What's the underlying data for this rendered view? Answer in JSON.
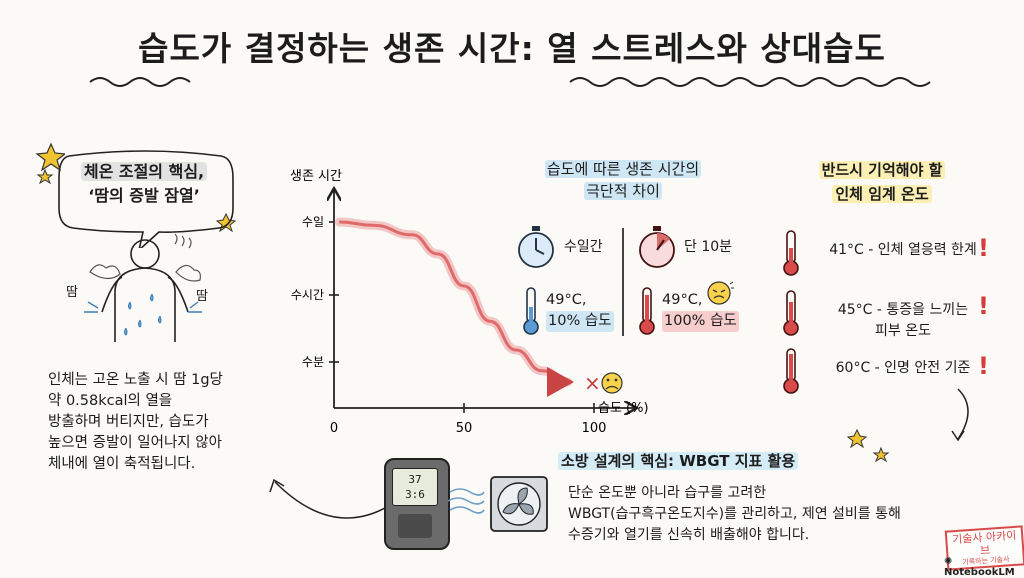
{
  "title": "습도가 결정하는 생존 시간: 열 스트레스와 상대습도",
  "left": {
    "heading_line1": "체온 조절의 핵심,",
    "heading_line2": "‘땀의 증발 잠열’",
    "sweat_label_left": "땀",
    "sweat_label_right": "땀",
    "body_text": [
      "인체는 고온 노출 시 땀 1g당",
      "약 0.58kcal의 열을",
      "방출하며 버티지만, 습도가",
      "높으면 증발이 일어나지 않아",
      "체내에 열이 축적됩니다."
    ]
  },
  "chart_data": {
    "type": "line",
    "ylabel": "생존 시간",
    "xlabel": "습도 (%)",
    "x_ticks": [
      "0",
      "50",
      "100"
    ],
    "y_ticks": [
      "수일",
      "수시간",
      "수분"
    ],
    "series": [
      {
        "x": [
          2,
          15,
          30,
          40,
          50,
          60,
          70,
          80,
          90
        ],
        "y_level": [
          1.0,
          0.98,
          0.92,
          0.8,
          0.6,
          0.38,
          0.2,
          0.07,
          0.0
        ]
      }
    ],
    "end_marker": "×"
  },
  "comparison": {
    "heading_line1": "습도에 따른 생존 시간의",
    "heading_line2": "극단적 차이",
    "left_time": "수일간",
    "left_temp": "49°C,",
    "left_humidity": "10% 습도",
    "right_time": "단 10분",
    "right_temp": "49°C,",
    "right_humidity": "100% 습도"
  },
  "thresholds": {
    "heading_line1": "반드시 기억해야 할",
    "heading_line2": "인체 임계 온도",
    "items": [
      {
        "line1": "41°C - 인체 열응력 한계",
        "line2": ""
      },
      {
        "line1": "45°C - 통증을 느끼는",
        "line2": "피부 온도"
      },
      {
        "line1": "60°C - 인명 안전 기준",
        "line2": ""
      }
    ],
    "exclamation": "!"
  },
  "wbgt": {
    "heading": "소방 설계의 핵심: WBGT 지표 활용",
    "body": [
      "단순 온도뿐 아니라 습구를 고려한",
      "WBGT(습구흑구온도지수)를 관리하고, 제연 설비를 통해",
      "수증기와 열기를 신속히 배출해야 합니다."
    ],
    "meter_reading1": "37",
    "meter_reading2": "3:6"
  },
  "watermark": {
    "stamp_line1": "기술사 아카이브",
    "stamp_line2": "기록하는 기술사",
    "brand": "NotebookLM"
  },
  "colors": {
    "curve": "#e06a6a",
    "accent_red": "#d63c3c",
    "ink": "#1c1c1c",
    "star": "#f1c232"
  }
}
